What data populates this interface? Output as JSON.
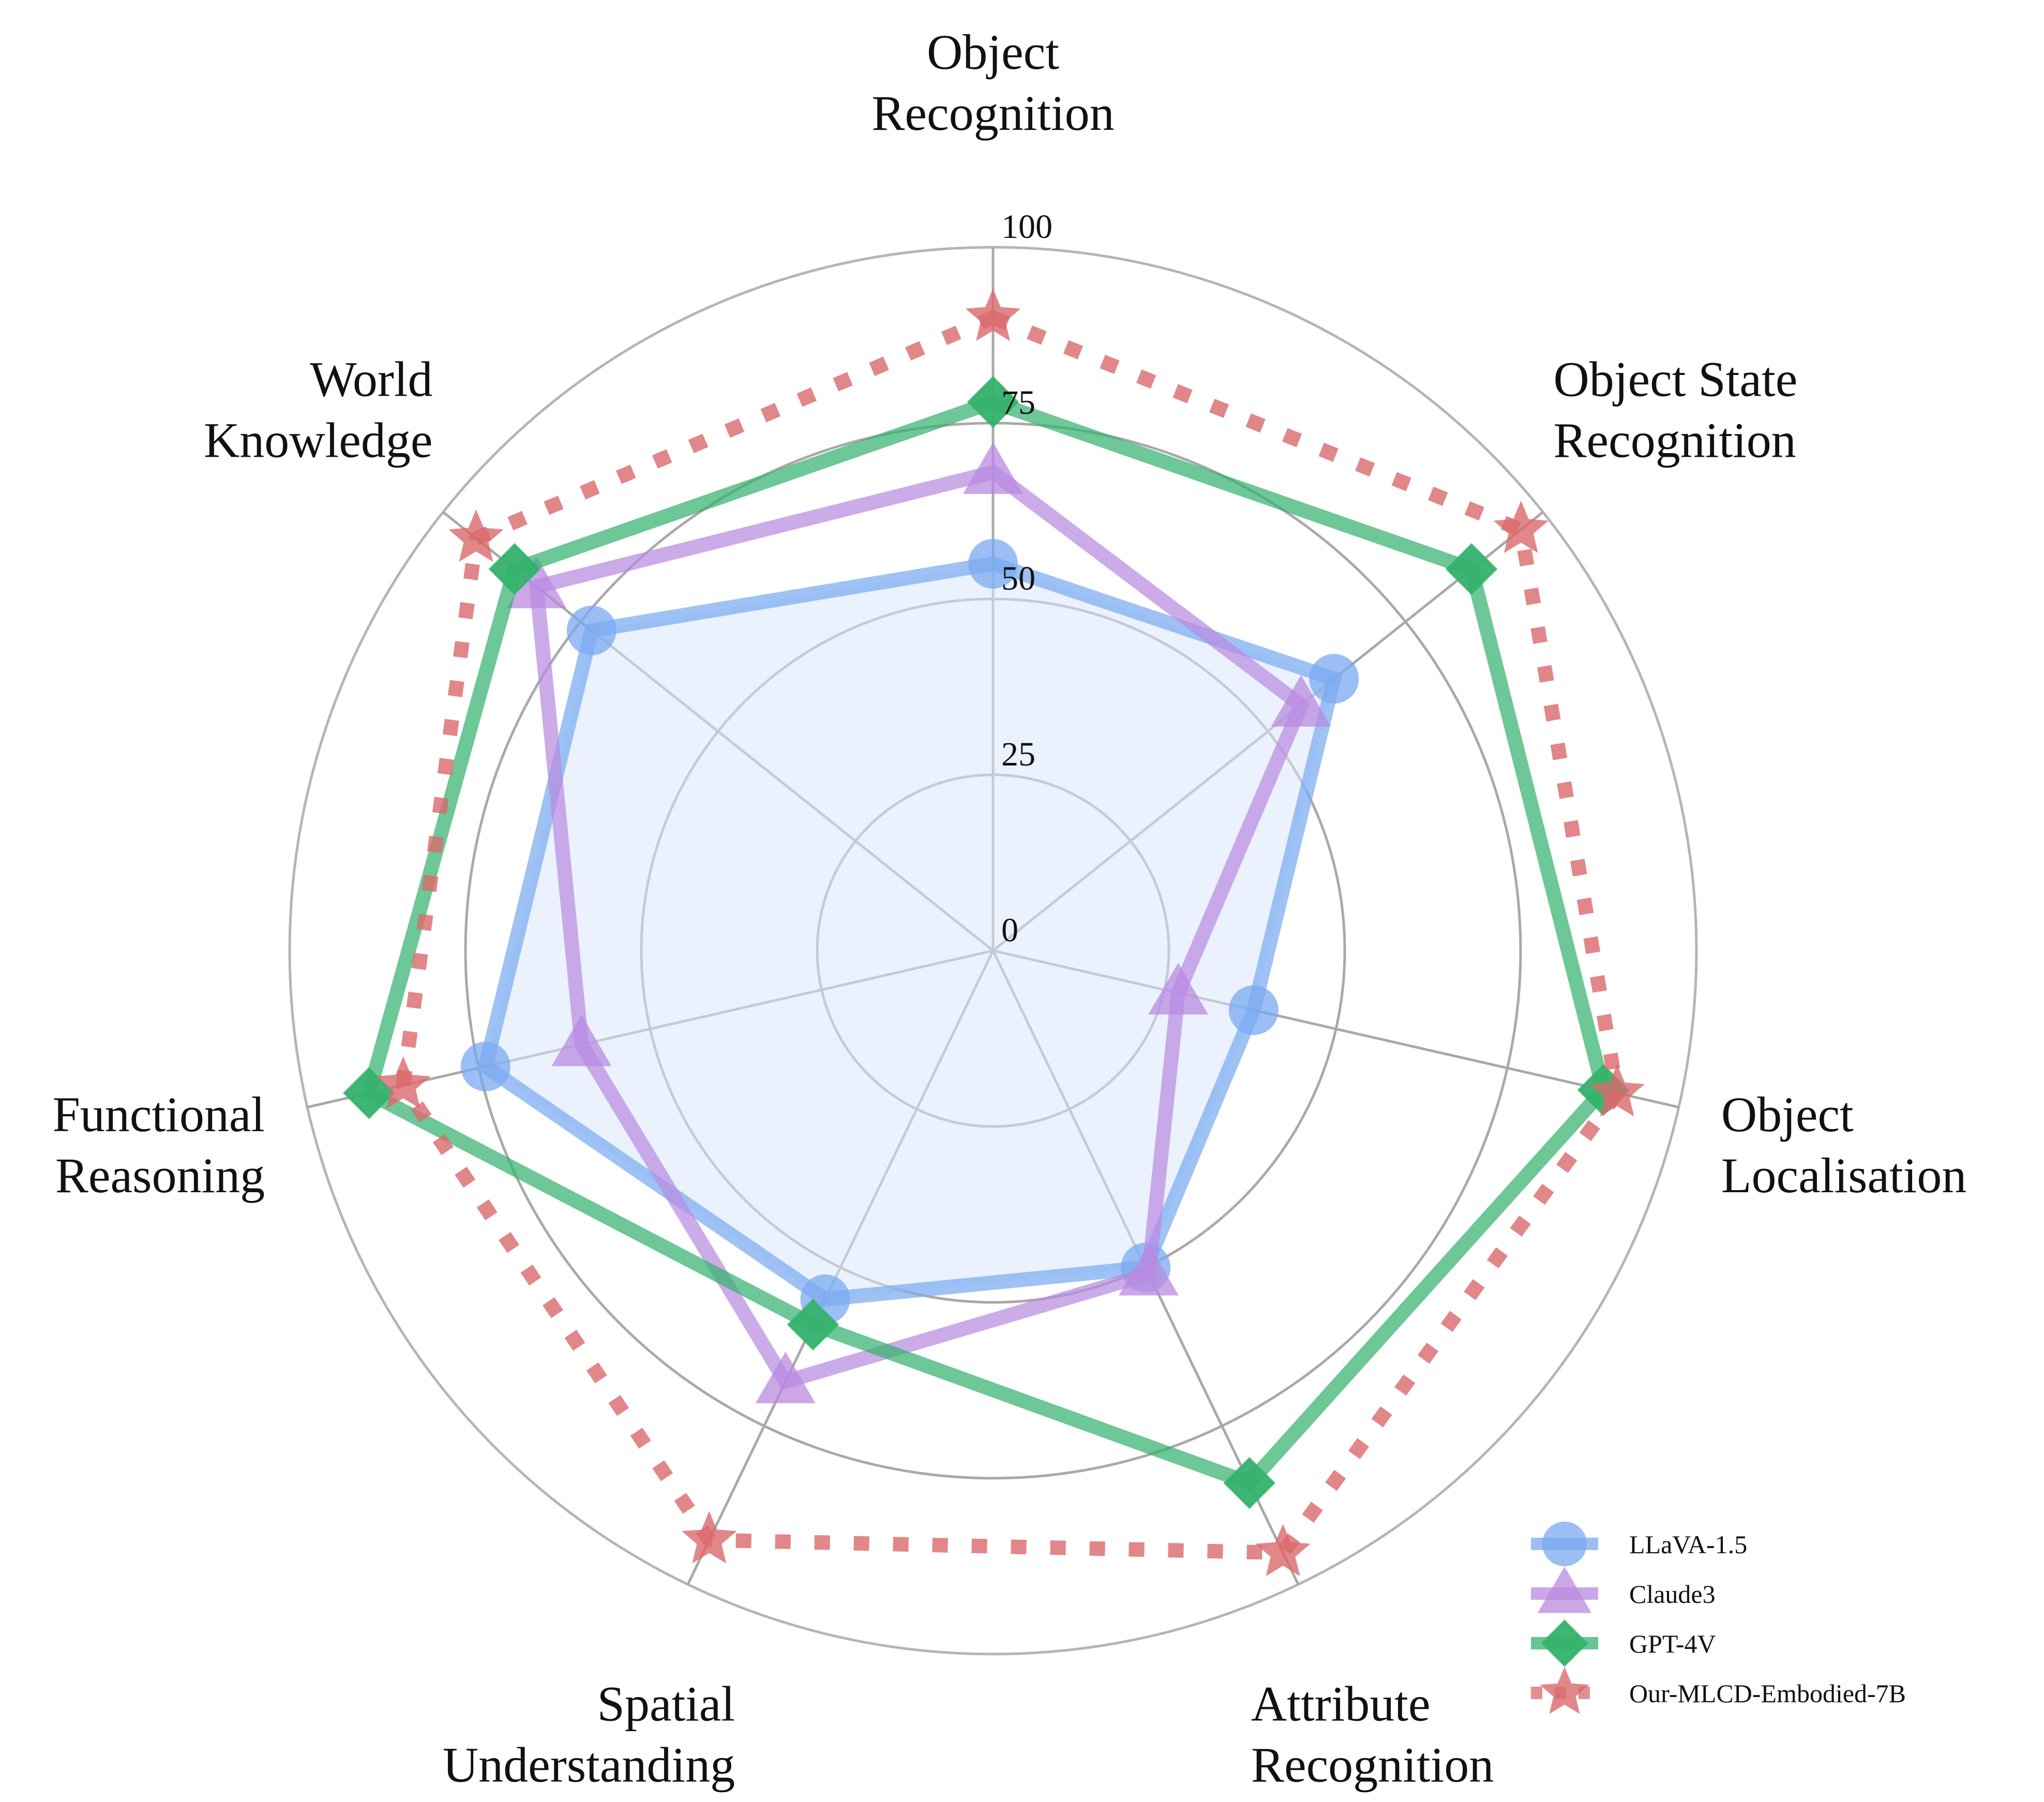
{
  "chart_data": {
    "type": "radar",
    "axes": [
      "Object\nRecognition",
      "Object State\nRecognition",
      "Object\nLocalisation",
      "Attribute\nRecognition",
      "Spatial\nUnderstanding",
      "Functional\nReasoning",
      "World\nKnowledge"
    ],
    "rlim": [
      0,
      100
    ],
    "rticks": [
      "0",
      "25",
      "50",
      "75",
      "100"
    ],
    "grid": true,
    "legend_position": "bottom-right",
    "series": [
      {
        "name": "LLaVA-1.5",
        "values": [
          55,
          62,
          38,
          50,
          55,
          74,
          73
        ],
        "color": "#7aaaf0",
        "marker": "circle",
        "style": "solid",
        "fill": "#dce8fb"
      },
      {
        "name": "Claude3",
        "values": [
          68,
          56,
          27,
          51,
          68,
          60,
          83
        ],
        "color": "#b98ae0",
        "marker": "triangle",
        "style": "solid"
      },
      {
        "name": "GPT-4V",
        "values": [
          78,
          87,
          89,
          84,
          59,
          91,
          87
        ],
        "color": "#35b26d",
        "marker": "diamond",
        "style": "solid"
      },
      {
        "name": "Our-MLCD-Embodied-7B",
        "values": [
          90,
          96,
          91,
          95,
          93,
          86,
          94
        ],
        "color": "#d9696b",
        "marker": "star",
        "style": "dotted"
      }
    ]
  }
}
